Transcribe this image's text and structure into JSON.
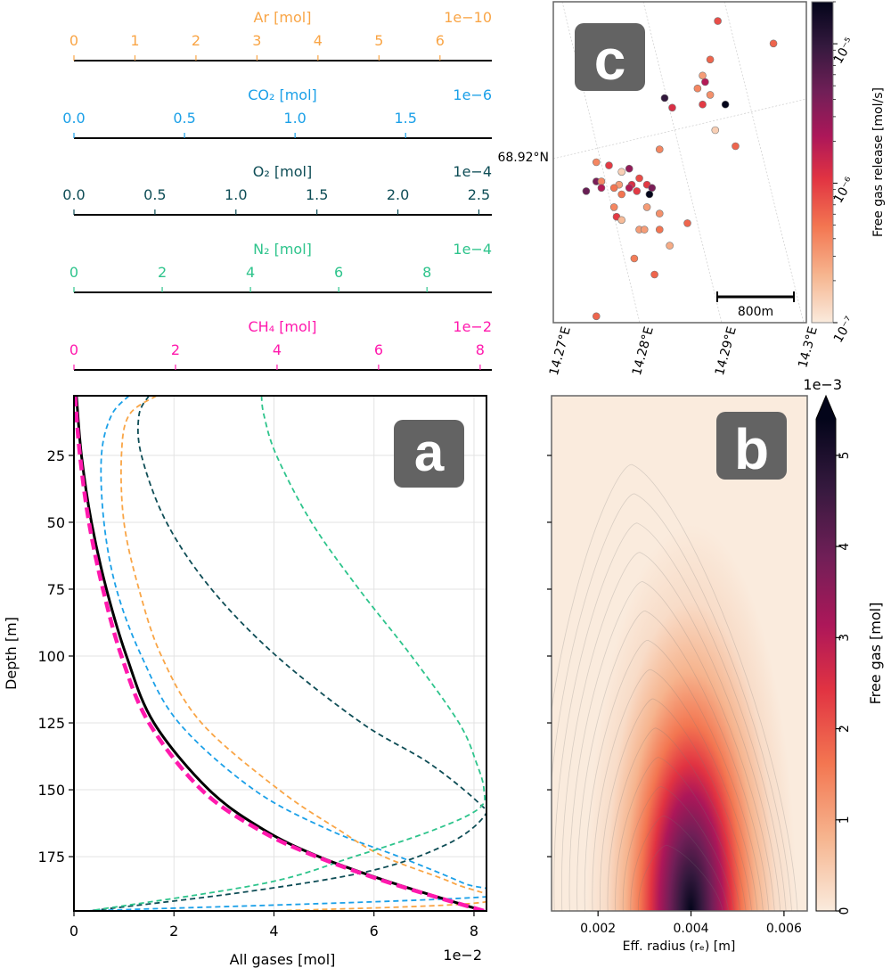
{
  "chart_data": [
    {
      "id": "gas_axes",
      "type": "table",
      "description": "Stacked secondary x-axes for individual gases (share depth profiles in panel a)",
      "axes": [
        {
          "key": "ar",
          "label": "Ar [mol]",
          "offset": "1e−10",
          "color": "#f9a546",
          "ticks": [
            0,
            1,
            2,
            3,
            4,
            5,
            6
          ],
          "tick_labels": [
            "0",
            "1",
            "2",
            "3",
            "4",
            "5",
            "6"
          ],
          "range": [
            0,
            6.85
          ]
        },
        {
          "key": "co2",
          "label": "CO₂ [mol]",
          "offset": "1e−6",
          "color": "#1ba0e8",
          "ticks": [
            0,
            0.5,
            1.0,
            1.5
          ],
          "tick_labels": [
            "0.0",
            "0.5",
            "1.0",
            "1.5"
          ],
          "range": [
            0,
            1.89
          ]
        },
        {
          "key": "o2",
          "label": "O₂ [mol]",
          "offset": "1e−4",
          "color": "#0e4d56",
          "ticks": [
            0,
            0.5,
            1.0,
            1.5,
            2.0,
            2.5
          ],
          "tick_labels": [
            "0.0",
            "0.5",
            "1.0",
            "1.5",
            "2.0",
            "2.5"
          ],
          "range": [
            0,
            2.58
          ]
        },
        {
          "key": "n2",
          "label": "N₂ [mol]",
          "offset": "1e−4",
          "color": "#2ec48c",
          "ticks": [
            0,
            2,
            4,
            6,
            8
          ],
          "tick_labels": [
            "0",
            "2",
            "4",
            "6",
            "8"
          ],
          "range": [
            0,
            9.47
          ]
        },
        {
          "key": "ch4",
          "label": "CH₄ [mol]",
          "offset": "1e−2",
          "color": "#ff19ad",
          "ticks": [
            0,
            2,
            4,
            6,
            8
          ],
          "tick_labels": [
            "0",
            "2",
            "4",
            "6",
            "8"
          ],
          "range": [
            0,
            8.23
          ]
        }
      ]
    },
    {
      "id": "panel_a",
      "type": "line",
      "panel_label": "a",
      "xlabel": "All gases [mol]",
      "x_offset": "1e−2",
      "ylabel": "Depth [m]",
      "xlim": [
        0,
        8.25
      ],
      "ylim": [
        195.3,
        2.7
      ],
      "xticks": [
        0,
        2,
        4,
        6,
        8
      ],
      "yticks": [
        25,
        50,
        75,
        100,
        125,
        150,
        175
      ],
      "grid": true,
      "series": [
        {
          "name": "All gases",
          "color": "#000000",
          "style": "solid",
          "depth": [
            2.7,
            25,
            50,
            75,
            100,
            125,
            150,
            165,
            175,
            185,
            195.3
          ],
          "value": [
            0.05,
            0.15,
            0.35,
            0.65,
            1.05,
            1.6,
            2.7,
            3.8,
            4.9,
            6.4,
            8.2
          ]
        },
        {
          "name": "CH4",
          "color": "#ff19ad",
          "style": "dashed-thick",
          "depth": [
            2.7,
            25,
            50,
            75,
            100,
            125,
            150,
            165,
            175,
            185,
            195.3
          ],
          "value": [
            0.02,
            0.12,
            0.3,
            0.58,
            0.95,
            1.5,
            2.55,
            3.7,
            4.85,
            6.35,
            8.2
          ]
        },
        {
          "name": "CO2",
          "color": "#1ba0e8",
          "style": "dashed",
          "depth": [
            2.7,
            10,
            25,
            50,
            75,
            100,
            125,
            150,
            165,
            175,
            185,
            190,
            195.3
          ],
          "value": [
            1.1,
            0.75,
            0.55,
            0.6,
            0.85,
            1.35,
            2.1,
            3.6,
            5.1,
            6.5,
            7.8,
            8.25,
            0.2
          ]
        },
        {
          "name": "Ar",
          "color": "#f9a546",
          "style": "dashed",
          "depth": [
            2.7,
            10,
            25,
            50,
            75,
            100,
            125,
            150,
            165,
            175,
            185,
            192,
            195.3
          ],
          "value": [
            1.65,
            1.1,
            0.95,
            1.0,
            1.3,
            1.75,
            2.55,
            4.1,
            5.3,
            6.2,
            7.6,
            8.2,
            4.0
          ]
        },
        {
          "name": "O2",
          "color": "#0e4d56",
          "style": "dashed",
          "depth": [
            2.7,
            10,
            25,
            50,
            75,
            100,
            125,
            140,
            155,
            160,
            170,
            180,
            188,
            195.3
          ],
          "value": [
            1.5,
            1.3,
            1.35,
            1.85,
            2.75,
            4.05,
            5.75,
            7.1,
            8.1,
            8.2,
            7.5,
            6.0,
            3.5,
            0.3
          ]
        },
        {
          "name": "N2",
          "color": "#2ec48c",
          "style": "dashed",
          "depth": [
            2.7,
            10,
            25,
            50,
            75,
            100,
            125,
            140,
            150,
            157,
            165,
            175,
            185,
            195.3
          ],
          "value": [
            3.75,
            3.8,
            4.05,
            4.75,
            5.7,
            6.75,
            7.7,
            8.05,
            8.2,
            8.1,
            7.2,
            5.6,
            3.8,
            0.3
          ]
        }
      ]
    },
    {
      "id": "panel_b",
      "type": "heatmap",
      "panel_label": "b",
      "xlabel": "Eff. radius (rₑ) [m]",
      "xlim": [
        0.001,
        0.0065
      ],
      "xticks": [
        0.002,
        0.004,
        0.006
      ],
      "xtick_labels": [
        "0.002",
        "0.004",
        "0.006"
      ],
      "ylim": [
        195.3,
        2.7
      ],
      "shared_y": "panel_a",
      "colorbar": {
        "label": "Free gas [mol]",
        "offset": "1e−3",
        "ticks": [
          0,
          1,
          2,
          3,
          4,
          5
        ],
        "range": [
          0,
          5.4
        ],
        "extend": "max",
        "cmap": "rocket_r"
      },
      "peak": {
        "x": 0.0038,
        "depth": 195,
        "value": 5.4
      },
      "description": "Free gas concentrated near bottom depths (~150–195 m) at radii 0.0025–0.0055 m, peak near r=0.0038 m at max depth"
    },
    {
      "id": "panel_c",
      "type": "scatter",
      "panel_label": "c",
      "xtick_labels": [
        "14.27°E",
        "14.28°E",
        "14.29°E",
        "14.3°E"
      ],
      "ytick_labels": [
        "68.92°N"
      ],
      "scale_bar": "800m",
      "colorbar": {
        "label": "Free gas release [mol/s]",
        "scale": "log",
        "range": [
          1e-07,
          2e-05
        ],
        "tick_labels": [
          "10⁻⁷",
          "10⁻⁶",
          "10⁻⁵"
        ]
      },
      "points_note": "x,y are fractional positions within the map frame (0..1 left→right, top→bottom); value in mol/s",
      "points": [
        {
          "x": 0.87,
          "y": 0.13,
          "v": 6e-07
        },
        {
          "x": 0.65,
          "y": 0.06,
          "v": 8e-07
        },
        {
          "x": 0.62,
          "y": 0.18,
          "v": 6e-07
        },
        {
          "x": 0.59,
          "y": 0.23,
          "v": 3e-07
        },
        {
          "x": 0.6,
          "y": 0.25,
          "v": 2e-06
        },
        {
          "x": 0.57,
          "y": 0.27,
          "v": 4e-07
        },
        {
          "x": 0.62,
          "y": 0.29,
          "v": 3.5e-07
        },
        {
          "x": 0.44,
          "y": 0.3,
          "v": 1e-05
        },
        {
          "x": 0.47,
          "y": 0.33,
          "v": 1.2e-06
        },
        {
          "x": 0.59,
          "y": 0.32,
          "v": 1e-06
        },
        {
          "x": 0.68,
          "y": 0.32,
          "v": 2e-05
        },
        {
          "x": 0.64,
          "y": 0.4,
          "v": 1.5e-07
        },
        {
          "x": 0.72,
          "y": 0.45,
          "v": 6e-07
        },
        {
          "x": 0.42,
          "y": 0.46,
          "v": 4e-07
        },
        {
          "x": 0.17,
          "y": 0.5,
          "v": 4e-07
        },
        {
          "x": 0.22,
          "y": 0.51,
          "v": 1e-06
        },
        {
          "x": 0.27,
          "y": 0.53,
          "v": 1.5e-07
        },
        {
          "x": 0.3,
          "y": 0.52,
          "v": 3e-06
        },
        {
          "x": 0.17,
          "y": 0.56,
          "v": 4e-06
        },
        {
          "x": 0.19,
          "y": 0.56,
          "v": 4e-07
        },
        {
          "x": 0.26,
          "y": 0.57,
          "v": 3e-07
        },
        {
          "x": 0.34,
          "y": 0.55,
          "v": 8e-07
        },
        {
          "x": 0.37,
          "y": 0.57,
          "v": 1e-06
        },
        {
          "x": 0.31,
          "y": 0.57,
          "v": 1.2e-06
        },
        {
          "x": 0.19,
          "y": 0.58,
          "v": 2e-06
        },
        {
          "x": 0.24,
          "y": 0.58,
          "v": 5e-07
        },
        {
          "x": 0.3,
          "y": 0.58,
          "v": 2e-06
        },
        {
          "x": 0.39,
          "y": 0.58,
          "v": 4e-06
        },
        {
          "x": 0.13,
          "y": 0.59,
          "v": 5e-06
        },
        {
          "x": 0.33,
          "y": 0.59,
          "v": 1e-06
        },
        {
          "x": 0.38,
          "y": 0.6,
          "v": 2e-05
        },
        {
          "x": 0.27,
          "y": 0.6,
          "v": 5e-07
        },
        {
          "x": 0.24,
          "y": 0.64,
          "v": 4e-07
        },
        {
          "x": 0.37,
          "y": 0.64,
          "v": 3e-07
        },
        {
          "x": 0.42,
          "y": 0.66,
          "v": 3.5e-07
        },
        {
          "x": 0.25,
          "y": 0.67,
          "v": 1e-06
        },
        {
          "x": 0.27,
          "y": 0.68,
          "v": 2e-07
        },
        {
          "x": 0.53,
          "y": 0.69,
          "v": 6e-07
        },
        {
          "x": 0.34,
          "y": 0.71,
          "v": 3e-07
        },
        {
          "x": 0.36,
          "y": 0.71,
          "v": 3e-07
        },
        {
          "x": 0.42,
          "y": 0.71,
          "v": 5e-07
        },
        {
          "x": 0.46,
          "y": 0.76,
          "v": 2.5e-07
        },
        {
          "x": 0.32,
          "y": 0.8,
          "v": 4.5e-07
        },
        {
          "x": 0.4,
          "y": 0.85,
          "v": 6e-07
        },
        {
          "x": 0.17,
          "y": 0.98,
          "v": 6e-07
        }
      ]
    }
  ]
}
